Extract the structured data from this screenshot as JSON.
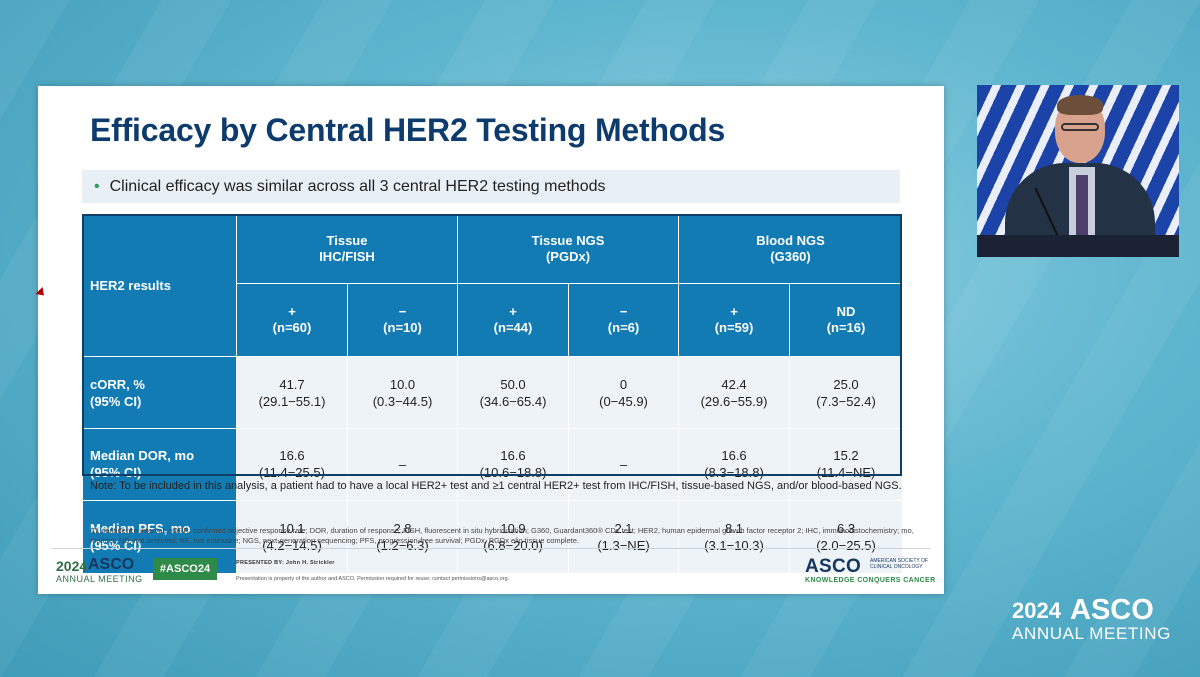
{
  "slide": {
    "title": "Efficacy by Central HER2 Testing Methods",
    "bullet": "Clinical efficacy was similar across all 3 central HER2 testing methods",
    "table": {
      "row_label_header": "HER2 results",
      "groups": [
        {
          "name_line1": "Tissue",
          "name_line2": "IHC/FISH",
          "subs": [
            {
              "sign": "+",
              "n": "(n=60)"
            },
            {
              "sign": "−",
              "n": "(n=10)"
            }
          ]
        },
        {
          "name_line1": "Tissue NGS",
          "name_line2": "(PGDx)",
          "subs": [
            {
              "sign": "+",
              "n": "(n=44)"
            },
            {
              "sign": "−",
              "n": "(n=6)"
            }
          ]
        },
        {
          "name_line1": "Blood NGS",
          "name_line2": "(G360)",
          "subs": [
            {
              "sign": "+",
              "n": "(n=59)"
            },
            {
              "sign": "ND",
              "n": "(n=16)"
            }
          ]
        }
      ],
      "rows": [
        {
          "label1": "cORR, %",
          "label2": "(95% CI)",
          "cells": [
            {
              "v": "41.7",
              "ci": "(29.1−55.1)"
            },
            {
              "v": "10.0",
              "ci": "(0.3−44.5)"
            },
            {
              "v": "50.0",
              "ci": "(34.6−65.4)"
            },
            {
              "v": "0",
              "ci": "(0−45.9)"
            },
            {
              "v": "42.4",
              "ci": "(29.6−55.9)"
            },
            {
              "v": "25.0",
              "ci": "(7.3−52.4)"
            }
          ]
        },
        {
          "label1": "Median DOR, mo",
          "label2": "(95% CI)",
          "cells": [
            {
              "v": "16.6",
              "ci": "(11.4−25.5)"
            },
            {
              "v": "–",
              "ci": ""
            },
            {
              "v": "16.6",
              "ci": "(10.6−18.8)"
            },
            {
              "v": "–",
              "ci": ""
            },
            {
              "v": "16.6",
              "ci": "(8.3−18.8)"
            },
            {
              "v": "15.2",
              "ci": "(11.4−NE)"
            }
          ]
        },
        {
          "label1": "Median PFS, mo",
          "label2": "(95% CI)",
          "cells": [
            {
              "v": "10.1",
              "ci": "(4.2−14.5)"
            },
            {
              "v": "2.8",
              "ci": "(1.2−6.3)"
            },
            {
              "v": "10.9",
              "ci": "(6.8−20.0)"
            },
            {
              "v": "2.1",
              "ci": "(1.3−NE)"
            },
            {
              "v": "8.1",
              "ci": "(3.1−10.3)"
            },
            {
              "v": "6.3",
              "ci": "(2.0−25.5)"
            }
          ]
        }
      ]
    },
    "note": "Note: To be included in this analysis, a patient had to have a local HER2+ test and ≥1 central HER2+ test from IHC/FISH, tissue-based NGS, and/or blood-based NGS.",
    "abbreviations": "CI, confidence interval; cORR, confirmed objective response rate; DOR, duration of response; FISH, fluorescent in situ hybridization; G360, Guardant360® CDx test; HER2, human epidermal growth factor receptor 2; IHC, immunohistochemistry; mo, months; ND, not detected; NE, not estimable; NGS, next-generation sequencing; PFS, progression-free survival; PGDx, PGDx elio tissue complete.",
    "footer": {
      "year": "2024",
      "asco": "ASCO",
      "annual": "ANNUAL MEETING",
      "hashtag": "#ASCO24",
      "presented_by": "PRESENTED BY: John H. Strickler",
      "property": "Presentation is property of the author and ASCO. Permission required for reuse; contact permissions@asco.org.",
      "logo": "ASCO",
      "society": "AMERICAN SOCIETY OF CLINICAL ONCOLOGY",
      "tagline": "KNOWLEDGE CONQUERS CANCER"
    }
  },
  "corner": {
    "year": "2024",
    "asco": "ASCO",
    "annual": "ANNUAL MEETING"
  },
  "colors": {
    "title": "#0e3b6e",
    "table_header": "#137bb3",
    "cell_bg": "#eef3f7",
    "accent_green": "#2d8a47"
  }
}
